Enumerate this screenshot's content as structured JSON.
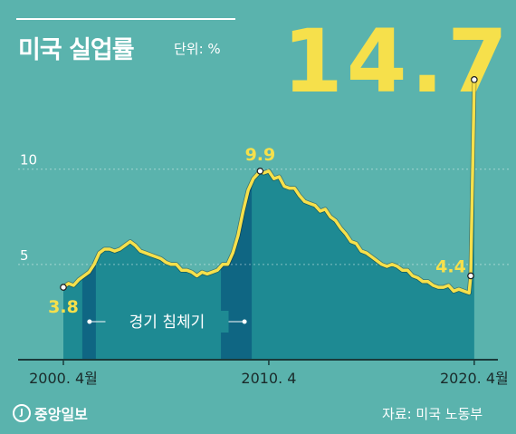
{
  "header": {
    "title": "미국 실업률",
    "unit": "단위: %",
    "big_value": "14.7"
  },
  "footer": {
    "logo_text": "중앙일보",
    "source": "자료: 미국 노동부"
  },
  "colors": {
    "background": "#5ab3ad",
    "area": "#1e8a93",
    "recession": "#0f6683",
    "line": "#f6e04b",
    "text": "#ffffff"
  },
  "chart_data": {
    "type": "area",
    "title": "미국 실업률",
    "ylabel": "단위: %",
    "ylim": [
      0,
      16.5
    ],
    "yticks": [
      {
        "value": 5,
        "label": "5"
      },
      {
        "value": 10,
        "label": "10"
      }
    ],
    "xlim": [
      2000.25,
      2020.3
    ],
    "xticks": [
      {
        "value": 2000.25,
        "label": "2000. 4월"
      },
      {
        "value": 2010.25,
        "label": "2010. 4"
      },
      {
        "value": 2020.25,
        "label": "2020. 4월"
      }
    ],
    "recessions": [
      {
        "start": 2001.17,
        "end": 2001.83
      },
      {
        "start": 2007.92,
        "end": 2009.42
      }
    ],
    "recession_label": "경기 침체기",
    "annotations": [
      {
        "x": 2000.25,
        "y": 3.8,
        "label": "3.8"
      },
      {
        "x": 2009.83,
        "y": 9.9,
        "label": "9.9"
      },
      {
        "x": 2020.08,
        "y": 4.4,
        "label": "4.4"
      },
      {
        "x": 2020.25,
        "y": 14.7,
        "label": "14.7"
      }
    ],
    "series": [
      {
        "points": [
          [
            2000.25,
            3.8
          ],
          [
            2000.5,
            4.0
          ],
          [
            2000.75,
            3.9
          ],
          [
            2001.0,
            4.2
          ],
          [
            2001.25,
            4.4
          ],
          [
            2001.5,
            4.6
          ],
          [
            2001.75,
            5.0
          ],
          [
            2002.0,
            5.6
          ],
          [
            2002.25,
            5.8
          ],
          [
            2002.5,
            5.8
          ],
          [
            2002.75,
            5.7
          ],
          [
            2003.0,
            5.8
          ],
          [
            2003.25,
            6.0
          ],
          [
            2003.5,
            6.2
          ],
          [
            2003.75,
            6.0
          ],
          [
            2004.0,
            5.7
          ],
          [
            2004.25,
            5.6
          ],
          [
            2004.5,
            5.5
          ],
          [
            2004.75,
            5.4
          ],
          [
            2005.0,
            5.3
          ],
          [
            2005.25,
            5.1
          ],
          [
            2005.5,
            5.0
          ],
          [
            2005.75,
            5.0
          ],
          [
            2006.0,
            4.7
          ],
          [
            2006.25,
            4.7
          ],
          [
            2006.5,
            4.6
          ],
          [
            2006.75,
            4.4
          ],
          [
            2007.0,
            4.6
          ],
          [
            2007.25,
            4.5
          ],
          [
            2007.5,
            4.6
          ],
          [
            2007.75,
            4.7
          ],
          [
            2008.0,
            5.0
          ],
          [
            2008.25,
            5.0
          ],
          [
            2008.5,
            5.6
          ],
          [
            2008.75,
            6.5
          ],
          [
            2009.0,
            7.8
          ],
          [
            2009.25,
            8.9
          ],
          [
            2009.5,
            9.5
          ],
          [
            2009.75,
            9.8
          ],
          [
            2009.83,
            9.9
          ],
          [
            2010.0,
            9.8
          ],
          [
            2010.25,
            9.9
          ],
          [
            2010.5,
            9.5
          ],
          [
            2010.75,
            9.6
          ],
          [
            2011.0,
            9.1
          ],
          [
            2011.25,
            9.0
          ],
          [
            2011.5,
            9.0
          ],
          [
            2011.75,
            8.6
          ],
          [
            2012.0,
            8.3
          ],
          [
            2012.25,
            8.2
          ],
          [
            2012.5,
            8.1
          ],
          [
            2012.75,
            7.8
          ],
          [
            2013.0,
            7.9
          ],
          [
            2013.25,
            7.5
          ],
          [
            2013.5,
            7.3
          ],
          [
            2013.75,
            6.9
          ],
          [
            2014.0,
            6.6
          ],
          [
            2014.25,
            6.2
          ],
          [
            2014.5,
            6.1
          ],
          [
            2014.75,
            5.7
          ],
          [
            2015.0,
            5.6
          ],
          [
            2015.25,
            5.4
          ],
          [
            2015.5,
            5.2
          ],
          [
            2015.75,
            5.0
          ],
          [
            2016.0,
            4.9
          ],
          [
            2016.25,
            5.0
          ],
          [
            2016.5,
            4.9
          ],
          [
            2016.75,
            4.7
          ],
          [
            2017.0,
            4.7
          ],
          [
            2017.25,
            4.4
          ],
          [
            2017.5,
            4.3
          ],
          [
            2017.75,
            4.1
          ],
          [
            2018.0,
            4.1
          ],
          [
            2018.25,
            3.9
          ],
          [
            2018.5,
            3.8
          ],
          [
            2018.75,
            3.8
          ],
          [
            2019.0,
            3.9
          ],
          [
            2019.25,
            3.6
          ],
          [
            2019.5,
            3.7
          ],
          [
            2019.75,
            3.6
          ],
          [
            2020.0,
            3.5
          ],
          [
            2020.08,
            4.4
          ],
          [
            2020.25,
            14.7
          ]
        ]
      }
    ]
  }
}
